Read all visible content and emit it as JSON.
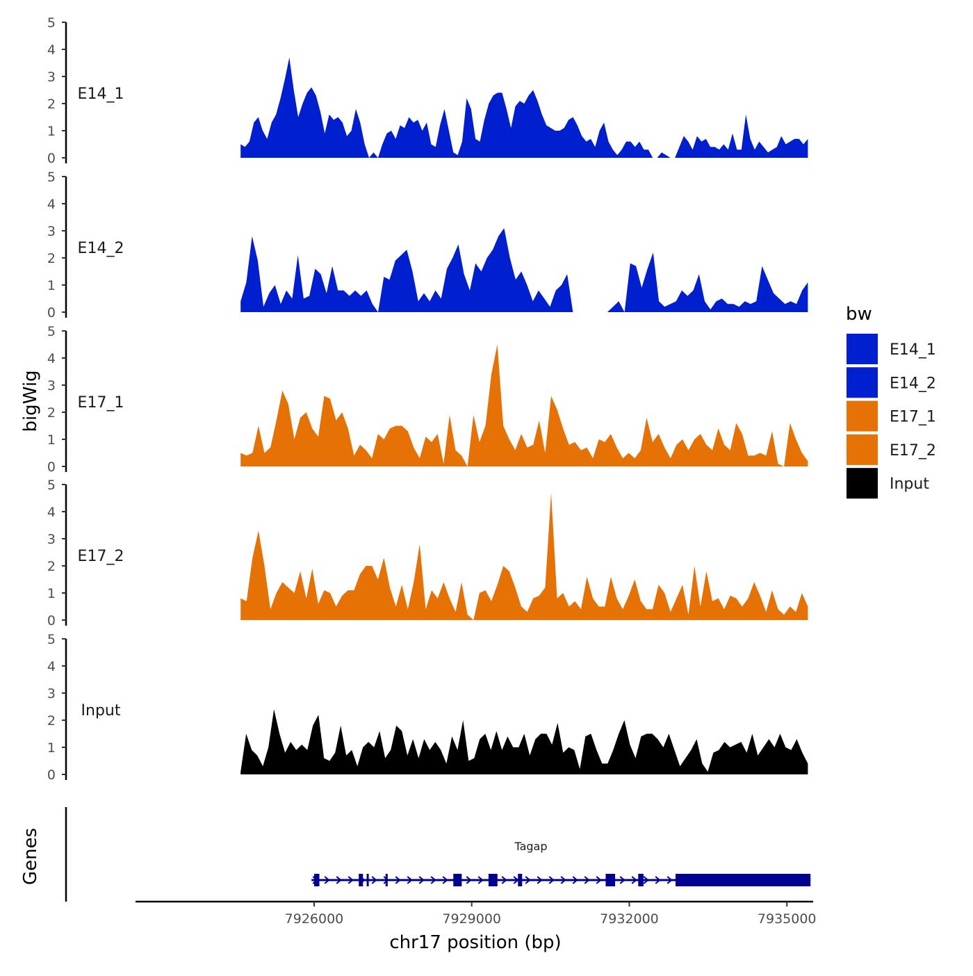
{
  "chart_data": {
    "type": "area",
    "y_axis_title": "bigWig",
    "gene_panel_title": "Genes",
    "x_axis_title": "chr17 position (bp)",
    "x_ticks": [
      7926000,
      7929000,
      7932000,
      7935000
    ],
    "x_tick_labels": [
      "7926000",
      "7929000",
      "7932000",
      "7935000"
    ],
    "x_range": [
      7922600,
      7935500
    ],
    "data_x_range": [
      7924600,
      7935400
    ],
    "y_range": [
      0,
      5
    ],
    "y_ticks": [
      0,
      1,
      2,
      3,
      4,
      5
    ],
    "y_tick_labels": [
      "0",
      "1",
      "2",
      "3",
      "4",
      "5"
    ],
    "legend": {
      "title": "bw",
      "items": [
        {
          "label": "E14_1",
          "color": "#0020D0"
        },
        {
          "label": "E14_2",
          "color": "#0020D0"
        },
        {
          "label": "E17_1",
          "color": "#E67205"
        },
        {
          "label": "E17_2",
          "color": "#E67205"
        },
        {
          "label": "Input",
          "color": "#000000"
        }
      ]
    },
    "series": [
      {
        "name": "E14_1",
        "color": "#0020D0",
        "values": [
          0.5,
          0.4,
          0.6,
          1.3,
          1.5,
          1.0,
          0.7,
          1.3,
          1.6,
          2.2,
          2.9,
          3.7,
          2.5,
          1.5,
          2.0,
          2.4,
          2.6,
          2.3,
          1.7,
          0.9,
          1.6,
          1.4,
          1.5,
          1.3,
          0.8,
          1.0,
          1.8,
          1.3,
          0.5,
          0.0,
          0.2,
          0.0,
          0.5,
          0.9,
          1.0,
          0.7,
          1.2,
          1.1,
          1.5,
          1.3,
          1.4,
          1.0,
          1.3,
          0.5,
          0.4,
          1.2,
          1.8,
          1.0,
          0.2,
          0.1,
          0.6,
          2.2,
          1.8,
          0.7,
          0.6,
          1.4,
          2.0,
          2.3,
          2.4,
          2.4,
          1.8,
          1.1,
          1.9,
          2.1,
          2.0,
          2.3,
          2.5,
          2.1,
          1.6,
          1.2,
          1.1,
          1.0,
          1.0,
          1.1,
          1.4,
          1.5,
          1.2,
          0.8,
          0.6,
          0.7,
          0.4,
          1.0,
          1.3,
          0.6,
          0.3,
          0.1,
          0.3,
          0.6,
          0.6,
          0.4,
          0.6,
          0.3,
          0.3,
          0.0,
          0.0,
          0.2,
          0.1,
          0.0,
          0.0,
          0.4,
          0.8,
          0.6,
          0.3,
          0.8,
          0.6,
          0.7,
          0.4,
          0.4,
          0.3,
          0.5,
          0.3,
          0.9,
          0.3,
          0.3,
          1.6,
          0.7,
          0.3,
          0.6,
          0.4,
          0.2,
          0.3,
          0.4,
          0.8,
          0.5,
          0.6,
          0.7,
          0.7,
          0.5,
          0.7
        ]
      },
      {
        "name": "E14_2",
        "color": "#0020D0",
        "values": [
          0.4,
          1.1,
          2.8,
          1.9,
          0.2,
          0.7,
          1.0,
          0.3,
          0.8,
          0.5,
          2.1,
          0.5,
          0.6,
          1.6,
          1.4,
          0.7,
          1.7,
          0.8,
          0.8,
          0.6,
          0.8,
          0.6,
          0.8,
          0.3,
          0.0,
          1.3,
          1.2,
          1.9,
          2.1,
          2.3,
          1.5,
          0.4,
          0.7,
          0.4,
          0.8,
          0.5,
          1.6,
          2.0,
          2.5,
          1.4,
          0.8,
          1.8,
          1.5,
          2.0,
          2.3,
          2.8,
          3.1,
          2.0,
          1.2,
          1.5,
          1.0,
          0.4,
          0.8,
          0.5,
          0.2,
          0.8,
          1.0,
          1.4,
          0.0,
          0.0,
          0.0,
          0.0,
          0.0,
          0.0,
          0.0,
          0.2,
          0.4,
          0.0,
          1.8,
          1.7,
          0.9,
          1.6,
          2.2,
          0.4,
          0.2,
          0.3,
          0.4,
          0.8,
          0.6,
          0.8,
          1.4,
          0.4,
          0.1,
          0.4,
          0.5,
          0.3,
          0.3,
          0.2,
          0.4,
          0.3,
          0.4,
          1.7,
          1.2,
          0.7,
          0.5,
          0.3,
          0.4,
          0.3,
          0.8,
          1.1
        ]
      },
      {
        "name": "E17_1",
        "color": "#E67205",
        "values": [
          0.5,
          0.4,
          0.5,
          1.5,
          0.5,
          0.7,
          1.7,
          2.8,
          2.3,
          1.0,
          1.8,
          2.0,
          1.4,
          1.1,
          2.6,
          2.5,
          1.7,
          2.0,
          1.4,
          0.4,
          0.8,
          0.6,
          0.3,
          1.2,
          1.0,
          1.4,
          1.5,
          1.5,
          1.3,
          0.7,
          0.3,
          1.1,
          0.9,
          1.2,
          0.1,
          1.9,
          0.6,
          0.4,
          0.0,
          1.9,
          0.9,
          1.5,
          3.4,
          4.5,
          1.5,
          1.0,
          0.6,
          1.2,
          0.7,
          0.8,
          1.7,
          0.5,
          2.6,
          2.1,
          1.4,
          0.8,
          0.9,
          0.6,
          0.7,
          0.3,
          1.0,
          0.9,
          1.2,
          0.7,
          0.3,
          0.5,
          0.3,
          0.6,
          1.8,
          0.9,
          1.2,
          0.7,
          0.3,
          0.8,
          1.0,
          0.6,
          1.0,
          1.2,
          0.8,
          0.6,
          1.4,
          0.8,
          0.6,
          1.6,
          1.2,
          0.4,
          0.4,
          0.5,
          0.4,
          1.3,
          0.1,
          0.0,
          1.6,
          1.0,
          0.5,
          0.2
        ]
      },
      {
        "name": "E17_2",
        "color": "#E67205",
        "values": [
          0.8,
          0.7,
          2.3,
          3.3,
          2.0,
          0.4,
          1.0,
          1.4,
          1.2,
          1.0,
          1.8,
          0.8,
          1.9,
          0.6,
          1.1,
          1.0,
          0.5,
          0.9,
          1.1,
          1.1,
          1.7,
          2.0,
          2.0,
          1.5,
          2.3,
          1.2,
          0.5,
          1.3,
          0.4,
          1.4,
          2.8,
          0.4,
          1.1,
          0.8,
          1.4,
          0.8,
          0.3,
          1.4,
          0.2,
          0.0,
          1.0,
          1.1,
          0.7,
          1.3,
          2.0,
          1.8,
          1.2,
          0.5,
          0.3,
          0.8,
          0.9,
          1.2,
          4.7,
          0.8,
          1.0,
          0.5,
          0.7,
          0.4,
          1.6,
          0.8,
          0.5,
          0.5,
          1.6,
          0.8,
          0.4,
          0.9,
          1.5,
          0.7,
          0.4,
          0.4,
          1.3,
          1.0,
          0.3,
          0.8,
          1.3,
          0.2,
          2.0,
          0.5,
          1.8,
          0.7,
          0.8,
          0.4,
          0.9,
          0.8,
          0.5,
          0.8,
          1.4,
          0.9,
          0.3,
          1.1,
          0.4,
          0.2,
          0.5,
          0.3,
          1.0,
          0.5
        ]
      },
      {
        "name": "Input",
        "color": "#000000",
        "values": [
          0.1,
          1.5,
          0.9,
          0.7,
          0.3,
          1.0,
          2.4,
          1.5,
          0.8,
          1.2,
          0.9,
          1.1,
          0.9,
          1.8,
          2.2,
          0.6,
          0.5,
          0.8,
          1.8,
          0.7,
          0.9,
          0.3,
          1.0,
          1.2,
          1.0,
          1.6,
          0.6,
          0.9,
          1.8,
          1.6,
          0.7,
          1.3,
          0.6,
          1.3,
          0.9,
          1.2,
          0.9,
          0.4,
          1.4,
          0.9,
          2.0,
          0.5,
          0.6,
          1.3,
          1.5,
          0.9,
          1.6,
          0.9,
          1.4,
          1.0,
          1.0,
          1.5,
          0.7,
          1.3,
          1.5,
          1.5,
          1.1,
          1.9,
          0.8,
          1.0,
          0.9,
          0.2,
          1.4,
          1.5,
          0.9,
          0.4,
          0.4,
          0.9,
          1.5,
          2.0,
          1.1,
          0.6,
          1.4,
          1.5,
          1.5,
          1.3,
          1.0,
          1.5,
          0.9,
          0.3,
          0.6,
          0.9,
          1.3,
          0.4,
          0.1,
          0.8,
          0.9,
          1.2,
          1.0,
          1.1,
          1.2,
          0.8,
          1.5,
          0.7,
          1.0,
          1.3,
          1.0,
          1.5,
          1.0,
          0.9,
          1.3,
          0.8,
          0.4
        ]
      }
    ],
    "gene": {
      "name": "Tagap",
      "start": 7925950,
      "end": 7935450,
      "strand": "+",
      "color": "#000090",
      "exons": [
        [
          7926000,
          7926100
        ],
        [
          7926850,
          7926930
        ],
        [
          7927000,
          7927040
        ],
        [
          7927360,
          7927400
        ],
        [
          7928650,
          7928810
        ],
        [
          7929320,
          7929490
        ],
        [
          7929880,
          7929960
        ],
        [
          7931550,
          7931730
        ],
        [
          7932170,
          7932270
        ],
        [
          7932880,
          7935450
        ]
      ]
    }
  }
}
